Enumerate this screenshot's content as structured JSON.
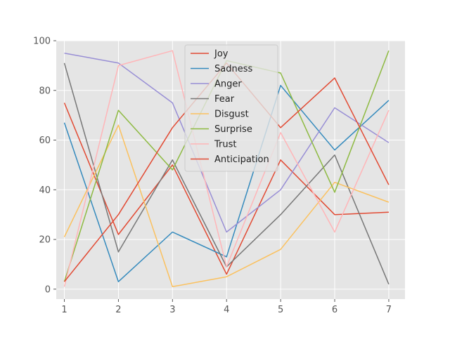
{
  "chart_data": {
    "type": "line",
    "title": "",
    "xlabel": "",
    "ylabel": "",
    "x": [
      1,
      2,
      3,
      4,
      5,
      6,
      7
    ],
    "xlim": [
      0.85,
      7.3
    ],
    "ylim": [
      -4,
      100
    ],
    "xticks": [
      "1",
      "2",
      "3",
      "4",
      "5",
      "6",
      "7"
    ],
    "yticks": [
      "0",
      "20",
      "40",
      "60",
      "80",
      "100"
    ],
    "grid": true,
    "legend_position": "top-center",
    "series": [
      {
        "name": "Joy",
        "color": "#E24A33",
        "values": [
          75,
          22,
          50,
          6,
          52,
          30,
          31
        ]
      },
      {
        "name": "Sadness",
        "color": "#348ABD",
        "values": [
          67,
          3,
          23,
          13,
          82,
          56,
          76
        ]
      },
      {
        "name": "Anger",
        "color": "#988ED5",
        "values": [
          95,
          91,
          75,
          23,
          40,
          73,
          59
        ]
      },
      {
        "name": "Fear",
        "color": "#777777",
        "values": [
          91,
          15,
          52,
          9,
          30,
          54,
          2
        ]
      },
      {
        "name": "Disgust",
        "color": "#FBC15E",
        "values": [
          21,
          66,
          1,
          5,
          16,
          43,
          35
        ]
      },
      {
        "name": "Surprise",
        "color": "#8EBA42",
        "values": [
          3,
          72,
          48,
          92,
          87,
          39,
          96
        ]
      },
      {
        "name": "Trust",
        "color": "#FFB5B8",
        "values": [
          1,
          90,
          96,
          9,
          63,
          23,
          72
        ]
      },
      {
        "name": "Anticipation",
        "color": "#E24A33",
        "values": [
          3,
          30,
          65,
          91,
          65,
          85,
          42
        ]
      }
    ]
  }
}
